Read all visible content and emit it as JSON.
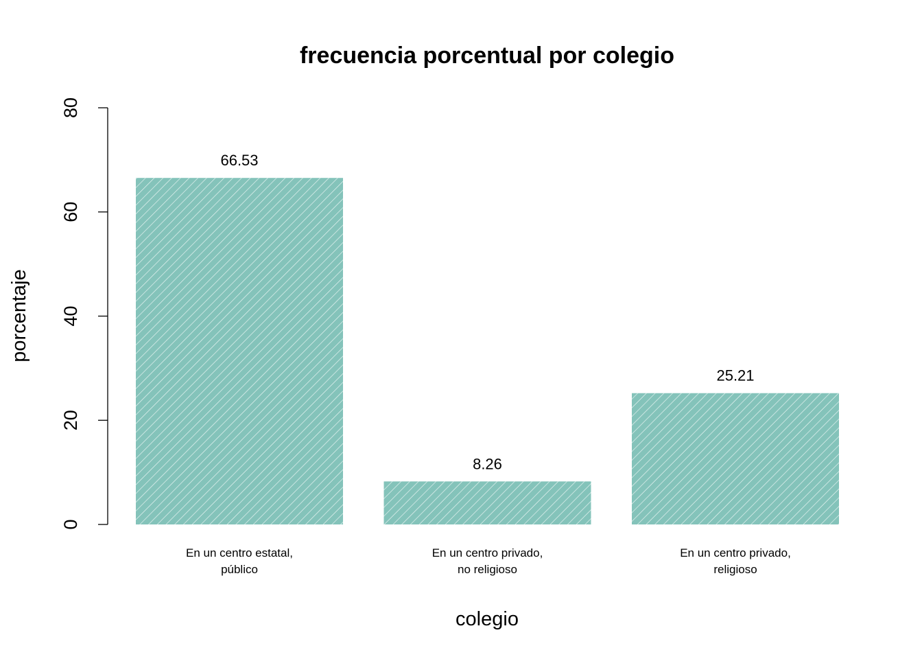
{
  "colors": {
    "bar": "#84c3ba",
    "hatch": "#ffffff",
    "axis": "#000000"
  },
  "chart_data": {
    "type": "bar",
    "title": "frecuencia porcentual por colegio",
    "xlabel": "colegio",
    "ylabel": "porcentaje",
    "ylim": [
      0,
      80
    ],
    "yticks": [
      "0",
      "20",
      "40",
      "60",
      "80"
    ],
    "categories": [
      [
        "En un centro estatal,",
        "público"
      ],
      [
        "En un centro privado,",
        "no religioso"
      ],
      [
        "En un centro privado,",
        "religioso"
      ]
    ],
    "values": [
      66.53,
      8.26,
      25.21
    ],
    "value_labels": [
      "66.53",
      "8.26",
      "25.21"
    ],
    "grid": false,
    "legend": "none"
  }
}
